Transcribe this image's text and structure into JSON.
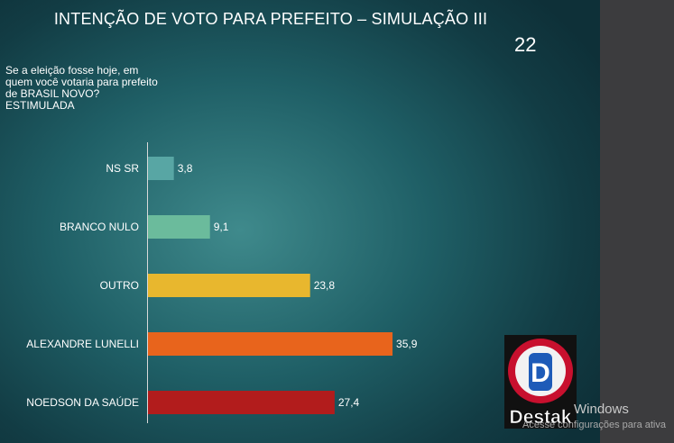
{
  "slide": {
    "title": "INTENÇÃO DE VOTO PARA PREFEITO – SIMULAÇÃO III",
    "page_number": "22",
    "question": "Se a eleição fosse hoje, em quem você votaria para prefeito de BRASIL NOVO? ESTIMULADA"
  },
  "chart_data": {
    "type": "bar",
    "orientation": "horizontal",
    "categories": [
      "NS SR",
      "BRANCO NULO",
      "OUTRO",
      "ALEXANDRE LUNELLI",
      "NOEDSON DA SAÚDE"
    ],
    "values": [
      3.8,
      9.1,
      23.8,
      35.9,
      27.4
    ],
    "value_labels": [
      "3,8",
      "9,1",
      "23,8",
      "35,9",
      "27,4"
    ],
    "colors": [
      "#58a6a4",
      "#6bbb9c",
      "#e8b72e",
      "#e8641c",
      "#b21c1c"
    ],
    "xlim": [
      0,
      40
    ],
    "grid": false,
    "legend": "none"
  },
  "logo": {
    "text": "Destak",
    "letter": "D",
    "colors": {
      "ring": "#c8102e",
      "inner": "#1e5bb8",
      "outline": "#111111"
    }
  },
  "watermark": {
    "line1": "Windows",
    "line2": "Acesse configurações para ativa"
  }
}
